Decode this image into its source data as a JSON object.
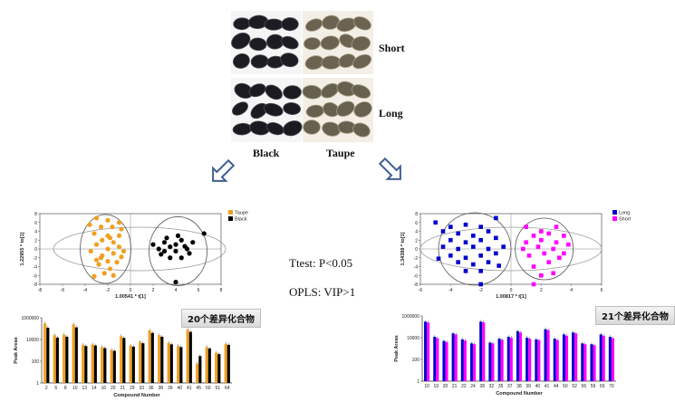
{
  "photo": {
    "row_labels": [
      "Short",
      "Long"
    ],
    "col_labels": [
      "Black",
      "Taupe"
    ]
  },
  "criteria": {
    "ttest": "Ttest: P<0.05",
    "opls": "OPLS: VIP>1"
  },
  "left_panel": {
    "count_label": "20个差异化合物",
    "legend": [
      {
        "name": "Taupe",
        "color": "#f0a020"
      },
      {
        "name": "Black",
        "color": "#000000"
      }
    ],
    "scores": {
      "xlabel": "1.00541 * t[1]",
      "ylabel": "1.22955 * to[1]",
      "xticks": [
        "-8",
        "-6",
        "-4",
        "-2",
        "0",
        "2",
        "4",
        "6",
        "8"
      ],
      "yticks": [
        "8",
        "6",
        "4",
        "2",
        "0",
        "-2",
        "-4",
        "-6",
        "-8"
      ]
    },
    "bars": {
      "xlabel": "Compound Number",
      "ylabel": "Peak Areas",
      "yticks": [
        "1000000",
        "10000",
        "100",
        "1"
      ],
      "categories": [
        "2",
        "6",
        "8",
        "10",
        "13",
        "14",
        "16",
        "20",
        "21",
        "29",
        "33",
        "36",
        "38",
        "39",
        "40",
        "41",
        "45",
        "50",
        "51",
        "64"
      ]
    }
  },
  "right_panel": {
    "count_label": "21个差异化合物",
    "legend": [
      {
        "name": "Long",
        "color": "#0000cc"
      },
      {
        "name": "Short",
        "color": "#ff00ff"
      }
    ],
    "scores": {
      "xlabel": "1.00817 * t[1]",
      "ylabel": "1.34399 * to[1]",
      "xticks": [
        "-6",
        "-4",
        "-2",
        "0",
        "2",
        "4",
        "6"
      ],
      "yticks": [
        "8",
        "6",
        "4",
        "2",
        "0",
        "-2",
        "-4",
        "-6",
        "-8"
      ]
    },
    "bars": {
      "xlabel": "Compound Number",
      "ylabel": "Peak Areas",
      "yticks": [
        "1000000",
        "10000",
        "100",
        "1"
      ],
      "categories": [
        "10",
        "19",
        "20",
        "21",
        "22",
        "24",
        "28",
        "32",
        "35",
        "37",
        "38",
        "39",
        "40",
        "41",
        "44",
        "50",
        "52",
        "56",
        "59",
        "65",
        "70"
      ]
    }
  },
  "chart_data": [
    {
      "type": "scatter",
      "title": "",
      "xlabel": "1.00541 * t[1]",
      "ylabel": "1.22955 * to[1]",
      "xlim": [
        -8,
        8
      ],
      "ylim": [
        -8,
        8
      ],
      "series": [
        {
          "name": "Taupe",
          "color": "#f0a020",
          "points": [
            [
              -3,
              7
            ],
            [
              -2,
              6.5
            ],
            [
              -1,
              6
            ],
            [
              -2.6,
              5
            ],
            [
              -1.6,
              5
            ],
            [
              -0.8,
              4.5
            ],
            [
              -3.2,
              3.5
            ],
            [
              -2,
              3
            ],
            [
              -1,
              3
            ],
            [
              -2.5,
              2
            ],
            [
              -1.5,
              1.5
            ],
            [
              -3,
              1
            ],
            [
              -1,
              0.5
            ],
            [
              -2,
              0
            ],
            [
              -3.5,
              -0.5
            ],
            [
              -1.5,
              -1
            ],
            [
              -2.5,
              -1.5
            ],
            [
              -0.8,
              -1.8
            ],
            [
              -3,
              -2.5
            ],
            [
              -2,
              -2.8
            ],
            [
              -1.2,
              -3
            ],
            [
              -2.8,
              -3.5
            ],
            [
              -1.8,
              -4.5
            ],
            [
              -2.3,
              -5.5
            ],
            [
              -1.5,
              -6
            ],
            [
              -3.2,
              -6.2
            ],
            [
              -2.6,
              -2
            ],
            [
              -1.8,
              2.5
            ],
            [
              -0.6,
              -0.5
            ],
            [
              -3.6,
              5.5
            ]
          ]
        },
        {
          "name": "Black",
          "color": "#000000",
          "points": [
            [
              2,
              1
            ],
            [
              2.5,
              0
            ],
            [
              3,
              1.5
            ],
            [
              3.5,
              0.5
            ],
            [
              4,
              1
            ],
            [
              4.5,
              2
            ],
            [
              3,
              -0.5
            ],
            [
              4,
              -0.5
            ],
            [
              5,
              0
            ],
            [
              5.5,
              1.5
            ],
            [
              3.5,
              -2
            ],
            [
              4.5,
              -2
            ],
            [
              6.5,
              3.5
            ],
            [
              4,
              -7.5
            ],
            [
              3.2,
              2.5
            ],
            [
              4.2,
              3
            ],
            [
              5.2,
              -1
            ],
            [
              2.7,
              -1.2
            ],
            [
              4.8,
              0.6
            ]
          ]
        }
      ]
    },
    {
      "type": "bar",
      "title": "",
      "xlabel": "Compound Number",
      "ylabel": "Peak Areas",
      "yscale": "log",
      "ylim": [
        1,
        1000000
      ],
      "categories": [
        "2",
        "6",
        "8",
        "10",
        "13",
        "14",
        "16",
        "20",
        "21",
        "29",
        "33",
        "36",
        "38",
        "39",
        "40",
        "41",
        "45",
        "50",
        "51",
        "64"
      ],
      "series": [
        {
          "name": "Taupe",
          "color": "#f0a020",
          "values": [
            300000,
            25000,
            28000,
            250000,
            3200,
            3500,
            2000,
            1100,
            20000,
            2800,
            6000,
            70000,
            25000,
            5000,
            2500,
            80000,
            60,
            2000,
            600,
            4000
          ]
        },
        {
          "name": "Black",
          "color": "#000000",
          "values": [
            120000,
            15000,
            18000,
            130000,
            2500,
            2800,
            1600,
            900,
            14000,
            2200,
            4500,
            40000,
            18000,
            3600,
            2000,
            50000,
            300,
            1500,
            450,
            3200
          ]
        }
      ]
    },
    {
      "type": "scatter",
      "title": "",
      "xlabel": "1.00817 * t[1]",
      "ylabel": "1.34399 * to[1]",
      "xlim": [
        -6,
        6
      ],
      "ylim": [
        -8,
        8
      ],
      "series": [
        {
          "name": "Long",
          "color": "#0000cc",
          "points": [
            [
              -5,
              6
            ],
            [
              -4,
              5
            ],
            [
              -3,
              5.5
            ],
            [
              -2,
              5
            ],
            [
              -1,
              7
            ],
            [
              -4.5,
              4
            ],
            [
              -3.5,
              3.5
            ],
            [
              -2.5,
              3
            ],
            [
              -1.5,
              4
            ],
            [
              -4,
              2
            ],
            [
              -3,
              1.5
            ],
            [
              -2,
              2
            ],
            [
              -1,
              2.5
            ],
            [
              -4.5,
              0.5
            ],
            [
              -3.5,
              0
            ],
            [
              -2.5,
              0.5
            ],
            [
              -1.5,
              0
            ],
            [
              -0.5,
              0.5
            ],
            [
              -4,
              -1.5
            ],
            [
              -3,
              -2
            ],
            [
              -2,
              -1.5
            ],
            [
              -1,
              -1
            ],
            [
              -3.5,
              -3
            ],
            [
              -2.5,
              -3.5
            ],
            [
              -1.5,
              -3
            ],
            [
              -2,
              -5
            ],
            [
              -2,
              -8
            ],
            [
              -3,
              -5
            ],
            [
              -0.8,
              -3.8
            ],
            [
              -4.8,
              -2.2
            ]
          ]
        },
        {
          "name": "Short",
          "color": "#ff00ff",
          "points": [
            [
              1,
              5
            ],
            [
              2,
              4
            ],
            [
              3,
              5
            ],
            [
              1.5,
              3
            ],
            [
              2.5,
              3.5
            ],
            [
              3.5,
              3
            ],
            [
              1,
              1.5
            ],
            [
              2,
              2
            ],
            [
              3,
              1.5
            ],
            [
              0.8,
              0
            ],
            [
              1.8,
              0.5
            ],
            [
              2.8,
              0
            ],
            [
              3.8,
              1
            ],
            [
              1.2,
              -1.5
            ],
            [
              2.2,
              -1
            ],
            [
              3.2,
              -2
            ],
            [
              1.5,
              -4
            ],
            [
              2.5,
              -3
            ],
            [
              2,
              -6
            ],
            [
              1.5,
              -8
            ],
            [
              2.8,
              -5.5
            ],
            [
              3.5,
              -1
            ]
          ]
        }
      ]
    },
    {
      "type": "bar",
      "title": "",
      "xlabel": "Compound Number",
      "ylabel": "Peak Areas",
      "yscale": "log",
      "ylim": [
        1,
        1000000
      ],
      "categories": [
        "10",
        "19",
        "20",
        "21",
        "22",
        "24",
        "28",
        "32",
        "35",
        "37",
        "38",
        "39",
        "40",
        "41",
        "44",
        "50",
        "52",
        "56",
        "59",
        "65",
        "70"
      ],
      "series": [
        {
          "name": "Long",
          "color": "#0000cc",
          "values": [
            300000,
            12000,
            5000,
            25000,
            7000,
            3000,
            300000,
            3500,
            8000,
            12000,
            40000,
            10000,
            7000,
            60000,
            8000,
            20000,
            30000,
            3000,
            2500,
            20000,
            12000
          ]
        },
        {
          "name": "Short",
          "color": "#ff00ff",
          "values": [
            250000,
            9000,
            4000,
            20000,
            5500,
            2500,
            260000,
            3000,
            6500,
            10000,
            30000,
            8000,
            6000,
            50000,
            6000,
            15000,
            25000,
            2500,
            2000,
            15000,
            9000
          ]
        }
      ]
    }
  ]
}
